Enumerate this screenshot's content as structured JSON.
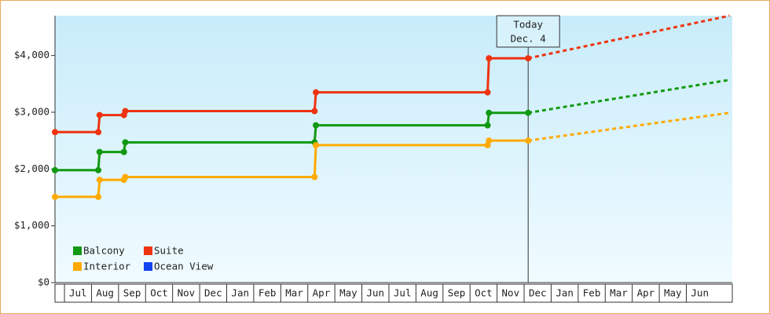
{
  "chart_data": {
    "type": "step-line",
    "xlim": [
      -0.35,
      24.7
    ],
    "ylim": [
      0,
      4700
    ],
    "yticks": [
      {
        "value": 0,
        "label": "$0"
      },
      {
        "value": 1000,
        "label": "$1,000"
      },
      {
        "value": 2000,
        "label": "$2,000"
      },
      {
        "value": 3000,
        "label": "$3,000"
      },
      {
        "value": 4000,
        "label": "$4,000"
      }
    ],
    "xticks": [
      {
        "value": 0.5,
        "label": "Jul"
      },
      {
        "value": 1.5,
        "label": "Aug"
      },
      {
        "value": 2.5,
        "label": "Sep"
      },
      {
        "value": 3.5,
        "label": "Oct"
      },
      {
        "value": 4.5,
        "label": "Nov"
      },
      {
        "value": 5.5,
        "label": "Dec"
      },
      {
        "value": 6.5,
        "label": "Jan"
      },
      {
        "value": 7.5,
        "label": "Feb"
      },
      {
        "value": 8.5,
        "label": "Mar"
      },
      {
        "value": 9.5,
        "label": "Apr"
      },
      {
        "value": 10.5,
        "label": "May"
      },
      {
        "value": 11.5,
        "label": "Jun"
      },
      {
        "value": 12.5,
        "label": "Jul"
      },
      {
        "value": 13.5,
        "label": "Aug"
      },
      {
        "value": 14.5,
        "label": "Sep"
      },
      {
        "value": 15.5,
        "label": "Oct"
      },
      {
        "value": 16.5,
        "label": "Nov"
      },
      {
        "value": 17.5,
        "label": "Dec"
      },
      {
        "value": 18.5,
        "label": "Jan"
      },
      {
        "value": 19.5,
        "label": "Feb"
      },
      {
        "value": 20.5,
        "label": "Mar"
      },
      {
        "value": 21.5,
        "label": "Apr"
      },
      {
        "value": 22.5,
        "label": "May"
      },
      {
        "value": 23.5,
        "label": "Jun"
      }
    ],
    "annotation": {
      "x": 17.15,
      "lines": [
        "Today",
        "Dec. 4"
      ]
    },
    "series": [
      {
        "name": "Balcony",
        "color": "#119911",
        "x": [
          -0.35,
          1.25,
          1.3,
          2.2,
          2.25,
          9.25,
          9.3,
          15.65,
          15.7,
          17.15
        ],
        "values": [
          1980,
          1980,
          2300,
          2300,
          2470,
          2470,
          2770,
          2770,
          2990,
          2990
        ],
        "forecast": {
          "x": [
            17.15,
            24.6
          ],
          "values": [
            2990,
            3570
          ]
        }
      },
      {
        "name": "Suite",
        "color": "#ee3311",
        "x": [
          -0.35,
          1.25,
          1.3,
          2.2,
          2.25,
          9.25,
          9.3,
          15.65,
          15.7,
          17.15
        ],
        "values": [
          2650,
          2650,
          2950,
          2950,
          3020,
          3020,
          3350,
          3350,
          3950,
          3950
        ],
        "forecast": {
          "x": [
            17.15,
            24.6
          ],
          "values": [
            3950,
            4700
          ]
        }
      },
      {
        "name": "Interior",
        "color": "#ffaa00",
        "x": [
          -0.35,
          1.25,
          1.3,
          2.2,
          2.25,
          9.25,
          9.3,
          15.65,
          15.7,
          17.15
        ],
        "values": [
          1510,
          1510,
          1810,
          1810,
          1860,
          1860,
          2420,
          2420,
          2500,
          2500
        ],
        "forecast": {
          "x": [
            17.15,
            24.6
          ],
          "values": [
            2500,
            2990
          ]
        }
      },
      {
        "name": "Ocean View",
        "color": "#1144ee",
        "x": [],
        "values": []
      }
    ]
  }
}
